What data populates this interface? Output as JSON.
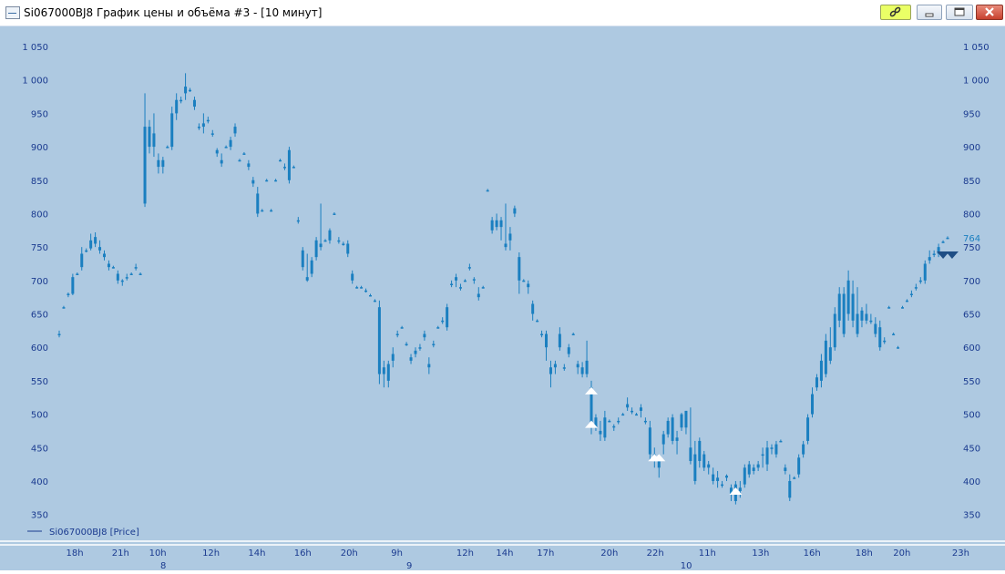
{
  "window": {
    "title": "Si067000BJ8 График цены и объёма #3 - [10 минут]",
    "buttons": [
      "link",
      "minimize",
      "maximize",
      "close"
    ]
  },
  "colors": {
    "background": "#aec9e1",
    "candle": "#1a7fc0",
    "axis_text": "#1a3a8f",
    "marker_up": "#ffffff",
    "marker_down": "#1f4e85"
  },
  "chart_data": {
    "type": "candlestick",
    "series_name": "Si067000BJ8 [Price]",
    "ylim": [
      310,
      1080
    ],
    "y_ticks": [
      350,
      400,
      450,
      500,
      550,
      600,
      650,
      700,
      750,
      800,
      850,
      900,
      950,
      1000,
      1050
    ],
    "y_tick_labels": [
      "350",
      "400",
      "450",
      "500",
      "550",
      "600",
      "650",
      "700",
      "750",
      "800",
      "850",
      "900",
      "950",
      "1 000",
      "1 050"
    ],
    "last_value": 764,
    "x_ticks": [
      {
        "label": "18h",
        "pos": 0.0
      },
      {
        "label": "21h",
        "pos": 0.074
      },
      {
        "label": "10h",
        "pos": 0.134
      },
      {
        "label": "12h",
        "pos": 0.22
      },
      {
        "label": "14h",
        "pos": 0.294
      },
      {
        "label": "16h",
        "pos": 0.368
      },
      {
        "label": "20h",
        "pos": 0.443
      },
      {
        "label": "9h",
        "pos": 0.52
      },
      {
        "label": "12h",
        "pos": 0.63
      },
      {
        "label": "14h",
        "pos": 0.694
      },
      {
        "label": "17h",
        "pos": 0.76
      },
      {
        "label": "20h",
        "pos": 0.863
      },
      {
        "label": "22h",
        "pos": 0.937
      },
      {
        "label": "11h",
        "pos": 1.021
      },
      {
        "label": "13h",
        "pos": 1.107
      },
      {
        "label": "16h",
        "pos": 1.19
      },
      {
        "label": "18h",
        "pos": 1.274
      },
      {
        "label": "20h",
        "pos": 1.335
      },
      {
        "label": "23h",
        "pos": 1.43
      }
    ],
    "day_labels": [
      {
        "label": "8",
        "pos": 0.143
      },
      {
        "label": "9",
        "pos": 0.54
      },
      {
        "label": "10",
        "pos": 0.987
      }
    ],
    "candles": [
      [
        620,
        625,
        615,
        620
      ],
      [
        660,
        662,
        658,
        660
      ],
      [
        678,
        682,
        675,
        680
      ],
      [
        680,
        710,
        678,
        705
      ],
      [
        710,
        712,
        708,
        710
      ],
      [
        720,
        750,
        715,
        740
      ],
      [
        745,
        748,
        742,
        745
      ],
      [
        748,
        770,
        745,
        760
      ],
      [
        755,
        772,
        750,
        765
      ],
      [
        745,
        760,
        740,
        750
      ],
      [
        735,
        745,
        730,
        740
      ],
      [
        720,
        730,
        715,
        725
      ],
      [
        720,
        722,
        718,
        720
      ],
      [
        700,
        715,
        695,
        710
      ],
      [
        698,
        702,
        692,
        700
      ],
      [
        705,
        710,
        700,
        705
      ],
      [
        710,
        712,
        708,
        710
      ],
      [
        720,
        725,
        715,
        720
      ],
      [
        710,
        712,
        708,
        710
      ],
      [
        815,
        980,
        810,
        930
      ],
      [
        930,
        940,
        890,
        900
      ],
      [
        900,
        950,
        885,
        920
      ],
      [
        880,
        890,
        860,
        870
      ],
      [
        870,
        885,
        860,
        880
      ],
      [
        900,
        902,
        898,
        900
      ],
      [
        900,
        960,
        895,
        950
      ],
      [
        950,
        980,
        940,
        970
      ],
      [
        970,
        975,
        965,
        970
      ],
      [
        980,
        1010,
        970,
        990
      ],
      [
        985,
        988,
        982,
        985
      ],
      [
        960,
        975,
        955,
        970
      ],
      [
        930,
        935,
        925,
        930
      ],
      [
        935,
        950,
        920,
        930
      ],
      [
        940,
        945,
        935,
        940
      ],
      [
        920,
        925,
        915,
        920
      ],
      [
        890,
        898,
        885,
        895
      ],
      [
        880,
        890,
        870,
        875
      ],
      [
        900,
        902,
        898,
        900
      ],
      [
        900,
        915,
        895,
        910
      ],
      [
        920,
        935,
        915,
        930
      ],
      [
        880,
        882,
        878,
        880
      ],
      [
        890,
        892,
        888,
        890
      ],
      [
        870,
        880,
        865,
        875
      ],
      [
        850,
        855,
        840,
        845
      ],
      [
        800,
        840,
        795,
        830
      ],
      [
        805,
        807,
        803,
        805
      ],
      [
        850,
        852,
        848,
        850
      ],
      [
        805,
        807,
        803,
        805
      ],
      [
        850,
        852,
        848,
        850
      ],
      [
        880,
        882,
        878,
        880
      ],
      [
        870,
        875,
        865,
        870
      ],
      [
        850,
        900,
        845,
        895
      ],
      [
        870,
        872,
        868,
        870
      ],
      [
        790,
        795,
        785,
        788
      ],
      [
        720,
        750,
        715,
        745
      ],
      [
        700,
        740,
        698,
        705
      ],
      [
        710,
        735,
        705,
        730
      ],
      [
        735,
        765,
        730,
        760
      ],
      [
        750,
        815,
        745,
        755
      ],
      [
        760,
        762,
        758,
        760
      ],
      [
        760,
        778,
        755,
        775
      ],
      [
        800,
        802,
        798,
        800
      ],
      [
        760,
        765,
        755,
        760
      ],
      [
        755,
        758,
        752,
        755
      ],
      [
        740,
        760,
        735,
        755
      ],
      [
        700,
        715,
        695,
        710
      ],
      [
        690,
        692,
        688,
        690
      ],
      [
        690,
        692,
        688,
        690
      ],
      [
        685,
        688,
        682,
        685
      ],
      [
        678,
        680,
        676,
        678
      ],
      [
        670,
        672,
        668,
        670
      ],
      [
        660,
        670,
        545,
        560
      ],
      [
        560,
        580,
        540,
        570
      ],
      [
        550,
        580,
        540,
        575
      ],
      [
        580,
        600,
        570,
        590
      ],
      [
        620,
        625,
        615,
        620
      ],
      [
        630,
        632,
        628,
        630
      ],
      [
        605,
        608,
        602,
        605
      ],
      [
        580,
        590,
        575,
        585
      ],
      [
        590,
        600,
        585,
        595
      ],
      [
        600,
        605,
        595,
        600
      ],
      [
        620,
        625,
        610,
        615
      ],
      [
        570,
        585,
        560,
        575
      ],
      [
        605,
        610,
        600,
        605
      ],
      [
        630,
        632,
        628,
        630
      ],
      [
        640,
        645,
        635,
        640
      ],
      [
        630,
        665,
        625,
        660
      ],
      [
        695,
        700,
        690,
        695
      ],
      [
        700,
        710,
        690,
        705
      ],
      [
        690,
        695,
        685,
        690
      ],
      [
        700,
        702,
        698,
        700
      ],
      [
        720,
        725,
        715,
        720
      ],
      [
        700,
        705,
        695,
        702
      ],
      [
        680,
        690,
        670,
        675
      ],
      [
        690,
        692,
        688,
        690
      ],
      [
        835,
        837,
        833,
        835
      ],
      [
        790,
        795,
        770,
        775
      ],
      [
        780,
        800,
        775,
        790
      ],
      [
        790,
        795,
        760,
        780
      ],
      [
        750,
        815,
        745,
        755
      ],
      [
        760,
        780,
        745,
        770
      ],
      [
        800,
        812,
        795,
        808
      ],
      [
        735,
        742,
        680,
        700
      ],
      [
        700,
        702,
        698,
        700
      ],
      [
        695,
        700,
        680,
        690
      ],
      [
        650,
        670,
        640,
        665
      ],
      [
        640,
        642,
        638,
        640
      ],
      [
        620,
        625,
        615,
        620
      ],
      [
        600,
        625,
        580,
        620
      ],
      [
        560,
        580,
        540,
        570
      ],
      [
        570,
        580,
        560,
        575
      ],
      [
        600,
        630,
        595,
        620
      ],
      [
        570,
        575,
        565,
        570
      ],
      [
        600,
        605,
        585,
        590
      ],
      [
        620,
        622,
        618,
        620
      ],
      [
        570,
        580,
        560,
        575
      ],
      [
        560,
        578,
        555,
        570
      ],
      [
        560,
        610,
        555,
        580
      ],
      [
        480,
        550,
        470,
        540
      ],
      [
        480,
        500,
        475,
        495
      ],
      [
        470,
        490,
        460,
        475
      ],
      [
        465,
        505,
        460,
        495
      ],
      [
        490,
        492,
        488,
        490
      ],
      [
        480,
        485,
        475,
        482
      ],
      [
        490,
        495,
        485,
        490
      ],
      [
        500,
        502,
        498,
        500
      ],
      [
        510,
        525,
        505,
        515
      ],
      [
        505,
        510,
        500,
        505
      ],
      [
        500,
        502,
        498,
        500
      ],
      [
        505,
        515,
        495,
        510
      ],
      [
        490,
        495,
        485,
        490
      ],
      [
        440,
        490,
        430,
        480
      ],
      [
        430,
        450,
        420,
        440
      ],
      [
        420,
        440,
        405,
        430
      ],
      [
        455,
        475,
        440,
        470
      ],
      [
        470,
        495,
        465,
        490
      ],
      [
        460,
        500,
        455,
        495
      ],
      [
        460,
        475,
        440,
        465
      ],
      [
        480,
        502,
        475,
        500
      ],
      [
        480,
        505,
        470,
        505
      ],
      [
        430,
        510,
        425,
        450
      ],
      [
        400,
        460,
        395,
        440
      ],
      [
        430,
        465,
        420,
        460
      ],
      [
        420,
        445,
        415,
        440
      ],
      [
        420,
        430,
        410,
        425
      ],
      [
        400,
        420,
        395,
        410
      ],
      [
        400,
        415,
        390,
        405
      ],
      [
        395,
        400,
        390,
        393
      ],
      [
        405,
        410,
        400,
        408
      ],
      [
        380,
        395,
        370,
        390
      ],
      [
        370,
        400,
        365,
        395
      ],
      [
        385,
        400,
        375,
        390
      ],
      [
        395,
        425,
        390,
        420
      ],
      [
        410,
        430,
        405,
        425
      ],
      [
        415,
        425,
        410,
        420
      ],
      [
        420,
        430,
        415,
        425
      ],
      [
        440,
        450,
        420,
        440
      ],
      [
        425,
        460,
        415,
        450
      ],
      [
        450,
        455,
        440,
        448
      ],
      [
        440,
        460,
        435,
        455
      ],
      [
        460,
        462,
        458,
        460
      ],
      [
        420,
        425,
        410,
        415
      ],
      [
        375,
        410,
        370,
        400
      ],
      [
        405,
        407,
        403,
        405
      ],
      [
        410,
        440,
        405,
        435
      ],
      [
        440,
        460,
        435,
        455
      ],
      [
        460,
        500,
        455,
        495
      ],
      [
        500,
        540,
        495,
        530
      ],
      [
        540,
        560,
        535,
        555
      ],
      [
        550,
        590,
        540,
        580
      ],
      [
        560,
        620,
        555,
        610
      ],
      [
        580,
        630,
        575,
        600
      ],
      [
        600,
        660,
        595,
        650
      ],
      [
        640,
        690,
        630,
        680
      ],
      [
        620,
        690,
        615,
        680
      ],
      [
        650,
        715,
        640,
        700
      ],
      [
        640,
        700,
        630,
        680
      ],
      [
        620,
        690,
        615,
        650
      ],
      [
        640,
        660,
        630,
        655
      ],
      [
        640,
        665,
        635,
        650
      ],
      [
        640,
        650,
        635,
        640
      ],
      [
        620,
        645,
        615,
        635
      ],
      [
        600,
        640,
        595,
        630
      ],
      [
        610,
        615,
        605,
        610
      ],
      [
        660,
        662,
        658,
        660
      ],
      [
        620,
        622,
        618,
        620
      ],
      [
        600,
        602,
        598,
        600
      ],
      [
        660,
        662,
        658,
        660
      ],
      [
        670,
        672,
        668,
        670
      ],
      [
        680,
        685,
        675,
        680
      ],
      [
        690,
        695,
        685,
        690
      ],
      [
        700,
        705,
        695,
        698
      ],
      [
        700,
        730,
        695,
        725
      ],
      [
        730,
        745,
        725,
        735
      ],
      [
        740,
        745,
        735,
        738
      ],
      [
        740,
        755,
        735,
        750
      ],
      [
        758,
        760,
        756,
        758
      ],
      [
        764,
        766,
        762,
        764
      ]
    ],
    "markers": [
      {
        "type": "up",
        "candle": 118,
        "price": 535
      },
      {
        "type": "up",
        "candle": 118,
        "price": 485
      },
      {
        "type": "up",
        "candle": 132,
        "price": 435
      },
      {
        "type": "up",
        "candle": 133,
        "price": 435
      },
      {
        "type": "up",
        "candle": 150,
        "price": 385
      },
      {
        "type": "down",
        "candle": 196,
        "price": 738
      },
      {
        "type": "down",
        "candle": 198,
        "price": 738
      }
    ]
  }
}
